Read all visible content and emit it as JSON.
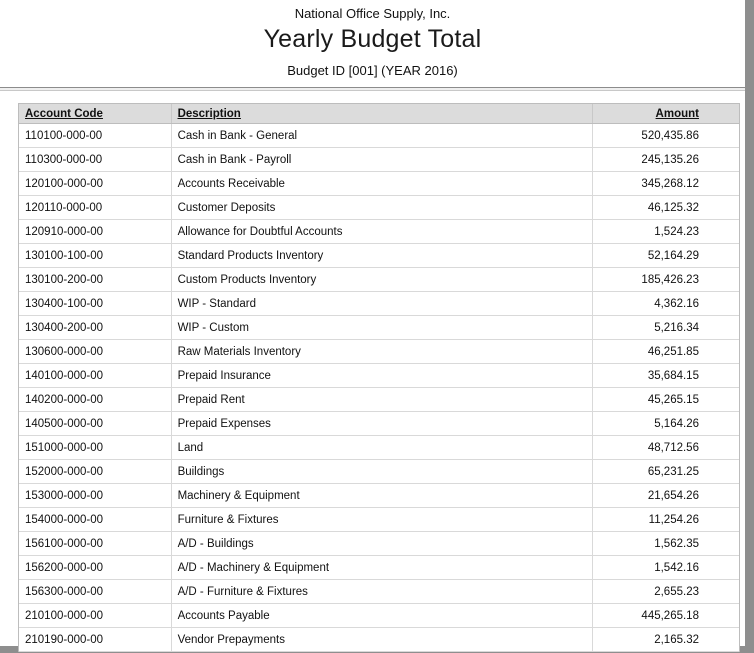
{
  "report": {
    "company": "National Office Supply, Inc.",
    "title": "Yearly Budget Total",
    "subtitle": "Budget ID [001] (YEAR 2016)"
  },
  "colors": {
    "header_bg": "#dcdcdc",
    "border": "#bdbdbd",
    "row_border": "#d9d9d9",
    "outside_bg": "#8e8e8e"
  },
  "table": {
    "columns": [
      "Account Code",
      "Description",
      "Amount"
    ],
    "rows": [
      {
        "code": "110100-000-00",
        "description": "Cash in Bank - General",
        "amount": "520,435.86"
      },
      {
        "code": "110300-000-00",
        "description": "Cash in Bank - Payroll",
        "amount": "245,135.26"
      },
      {
        "code": "120100-000-00",
        "description": "Accounts Receivable",
        "amount": "345,268.12"
      },
      {
        "code": "120110-000-00",
        "description": "Customer Deposits",
        "amount": "46,125.32"
      },
      {
        "code": "120910-000-00",
        "description": "Allowance for Doubtful Accounts",
        "amount": "1,524.23"
      },
      {
        "code": "130100-100-00",
        "description": "Standard Products Inventory",
        "amount": "52,164.29"
      },
      {
        "code": "130100-200-00",
        "description": "Custom Products Inventory",
        "amount": "185,426.23"
      },
      {
        "code": "130400-100-00",
        "description": "WIP - Standard",
        "amount": "4,362.16"
      },
      {
        "code": "130400-200-00",
        "description": "WIP - Custom",
        "amount": "5,216.34"
      },
      {
        "code": "130600-000-00",
        "description": "Raw Materials Inventory",
        "amount": "46,251.85"
      },
      {
        "code": "140100-000-00",
        "description": "Prepaid Insurance",
        "amount": "35,684.15"
      },
      {
        "code": "140200-000-00",
        "description": "Prepaid Rent",
        "amount": "45,265.15"
      },
      {
        "code": "140500-000-00",
        "description": "Prepaid Expenses",
        "amount": "5,164.26"
      },
      {
        "code": "151000-000-00",
        "description": "Land",
        "amount": "48,712.56"
      },
      {
        "code": "152000-000-00",
        "description": "Buildings",
        "amount": "65,231.25"
      },
      {
        "code": "153000-000-00",
        "description": "Machinery & Equipment",
        "amount": "21,654.26"
      },
      {
        "code": "154000-000-00",
        "description": "Furniture & Fixtures",
        "amount": "11,254.26"
      },
      {
        "code": "156100-000-00",
        "description": "A/D - Buildings",
        "amount": "1,562.35"
      },
      {
        "code": "156200-000-00",
        "description": "A/D - Machinery & Equipment",
        "amount": "1,542.16"
      },
      {
        "code": "156300-000-00",
        "description": "A/D - Furniture & Fixtures",
        "amount": "2,655.23"
      },
      {
        "code": "210100-000-00",
        "description": "Accounts Payable",
        "amount": "445,265.18"
      },
      {
        "code": "210190-000-00",
        "description": "Vendor Prepayments",
        "amount": "2,165.32"
      }
    ]
  }
}
